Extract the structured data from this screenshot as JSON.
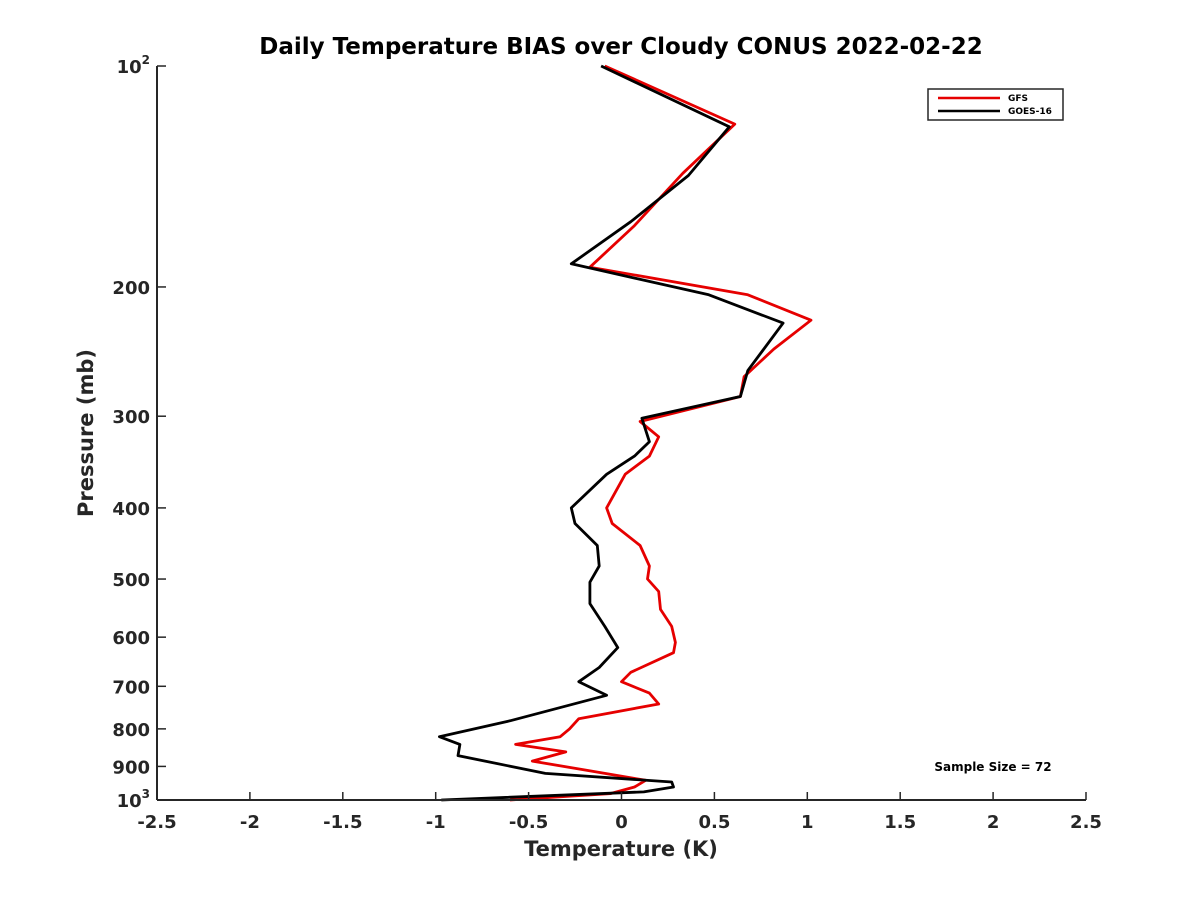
{
  "chart_data": {
    "type": "line",
    "title": "Daily Temperature BIAS over Cloudy CONUS 2022-02-22",
    "xlabel": "Temperature (K)",
    "ylabel": "Pressure (mb)",
    "xlim": [
      -2.5,
      2.5
    ],
    "ylim": [
      100,
      1000
    ],
    "y_scale": "log",
    "y_reversed": true,
    "grid": false,
    "legend_placement": "top-right",
    "x_ticks": [
      "-2.5",
      "-2",
      "-1.5",
      "-1",
      "-0.5",
      "0",
      "0.5",
      "1",
      "1.5",
      "2",
      "2.5"
    ],
    "y_ticks": [
      {
        "value": 100,
        "base": "10",
        "exp": "2"
      },
      {
        "value": 200,
        "label": "200"
      },
      {
        "value": 300,
        "label": "300"
      },
      {
        "value": 400,
        "label": "400"
      },
      {
        "value": 500,
        "label": "500"
      },
      {
        "value": 600,
        "label": "600"
      },
      {
        "value": 700,
        "label": "700"
      },
      {
        "value": 800,
        "label": "800"
      },
      {
        "value": 900,
        "label": "900"
      },
      {
        "value": 1000,
        "base": "10",
        "exp": "3"
      }
    ],
    "annotation": "Sample Size = 72",
    "series": [
      {
        "name": "GFS",
        "color": "#e60000",
        "points": [
          [
            -0.09,
            100
          ],
          [
            0.61,
            120
          ],
          [
            0.33,
            140
          ],
          [
            0.07,
            165
          ],
          [
            -0.17,
            188
          ],
          [
            0.68,
            205
          ],
          [
            1.02,
            222
          ],
          [
            0.82,
            243
          ],
          [
            0.66,
            265
          ],
          [
            0.64,
            282
          ],
          [
            0.1,
            305
          ],
          [
            0.2,
            320
          ],
          [
            0.15,
            340
          ],
          [
            0.02,
            360
          ],
          [
            -0.08,
            400
          ],
          [
            -0.05,
            420
          ],
          [
            0.1,
            450
          ],
          [
            0.15,
            480
          ],
          [
            0.14,
            500
          ],
          [
            0.2,
            520
          ],
          [
            0.21,
            550
          ],
          [
            0.27,
            580
          ],
          [
            0.29,
            610
          ],
          [
            0.28,
            630
          ],
          [
            0.05,
            670
          ],
          [
            0.0,
            690
          ],
          [
            0.15,
            715
          ],
          [
            0.2,
            740
          ],
          [
            -0.23,
            775
          ],
          [
            -0.28,
            800
          ],
          [
            -0.33,
            820
          ],
          [
            -0.57,
            840
          ],
          [
            -0.3,
            860
          ],
          [
            -0.48,
            885
          ],
          [
            -0.2,
            910
          ],
          [
            0.13,
            940
          ],
          [
            0.07,
            960
          ],
          [
            -0.06,
            980
          ],
          [
            -0.6,
            1000
          ]
        ]
      },
      {
        "name": "GOES-16",
        "color": "#000000",
        "points": [
          [
            -0.11,
            100
          ],
          [
            0.58,
            121
          ],
          [
            0.36,
            141
          ],
          [
            0.05,
            163
          ],
          [
            -0.27,
            186
          ],
          [
            0.47,
            205
          ],
          [
            0.87,
            224
          ],
          [
            0.68,
            260
          ],
          [
            0.64,
            282
          ],
          [
            0.11,
            302
          ],
          [
            0.15,
            325
          ],
          [
            0.07,
            340
          ],
          [
            -0.08,
            360
          ],
          [
            -0.27,
            400
          ],
          [
            -0.25,
            420
          ],
          [
            -0.13,
            450
          ],
          [
            -0.12,
            480
          ],
          [
            -0.17,
            505
          ],
          [
            -0.17,
            540
          ],
          [
            -0.09,
            580
          ],
          [
            -0.02,
            620
          ],
          [
            -0.12,
            660
          ],
          [
            -0.23,
            690
          ],
          [
            -0.08,
            720
          ],
          [
            -0.6,
            780
          ],
          [
            -0.98,
            820
          ],
          [
            -0.87,
            840
          ],
          [
            -0.88,
            870
          ],
          [
            -0.41,
            920
          ],
          [
            0.27,
            945
          ],
          [
            0.28,
            960
          ],
          [
            0.12,
            975
          ],
          [
            -0.97,
            1000
          ]
        ]
      }
    ]
  }
}
